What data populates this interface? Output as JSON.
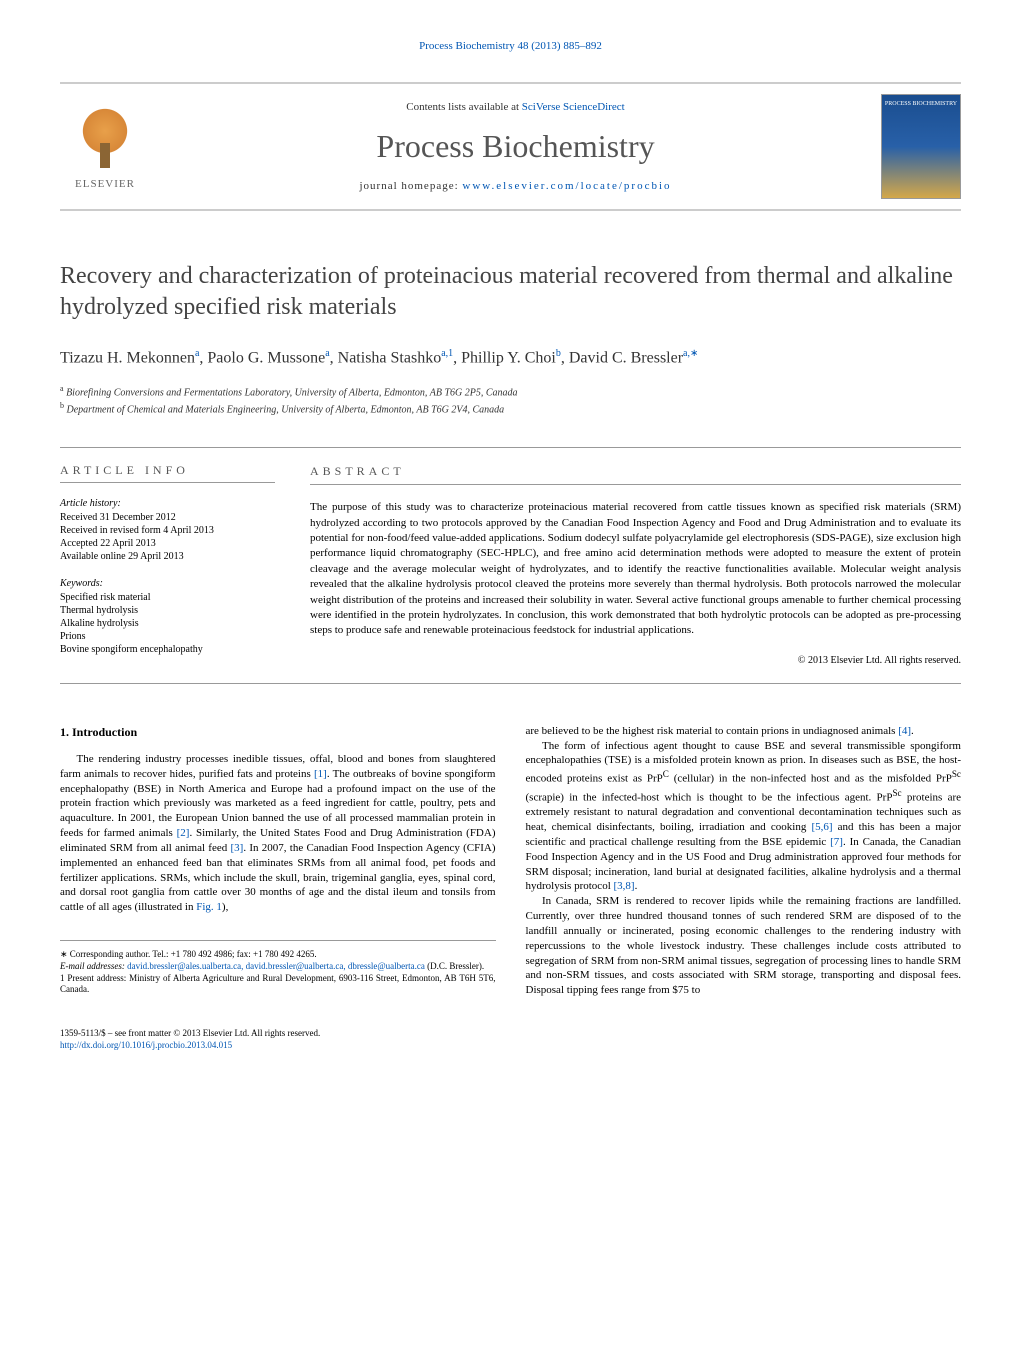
{
  "journal_ref": "Process Biochemistry 48 (2013) 885–892",
  "header": {
    "contents_prefix": "Contents lists available at ",
    "contents_link": "SciVerse ScienceDirect",
    "journal_name": "Process Biochemistry",
    "homepage_prefix": "journal homepage: ",
    "homepage_url": "www.elsevier.com/locate/procbio",
    "publisher": "ELSEVIER"
  },
  "title": "Recovery and characterization of proteinacious material recovered from thermal and alkaline hydrolyzed specified risk materials",
  "authors_html": "Tizazu H. Mekonnen<sup>a</sup>, Paolo G. Mussone<sup>a</sup>, Natisha Stashko<sup>a,1</sup>, Phillip Y. Choi<sup>b</sup>, David C. Bressler<sup>a,∗</sup>",
  "affiliations": {
    "a": "Biorefining Conversions and Fermentations Laboratory, University of Alberta, Edmonton, AB T6G 2P5, Canada",
    "b": "Department of Chemical and Materials Engineering, University of Alberta, Edmonton, AB T6G 2V4, Canada"
  },
  "info": {
    "section_label": "article info",
    "history_label": "Article history:",
    "received": "Received 31 December 2012",
    "revised": "Received in revised form 4 April 2013",
    "accepted": "Accepted 22 April 2013",
    "online": "Available online 29 April 2013",
    "keywords_label": "Keywords:",
    "keywords": [
      "Specified risk material",
      "Thermal hydrolysis",
      "Alkaline hydrolysis",
      "Prions",
      "Bovine spongiform encephalopathy"
    ]
  },
  "abstract": {
    "section_label": "abstract",
    "text": "The purpose of this study was to characterize proteinacious material recovered from cattle tissues known as specified risk materials (SRM) hydrolyzed according to two protocols approved by the Canadian Food Inspection Agency and Food and Drug Administration and to evaluate its potential for non-food/feed value-added applications. Sodium dodecyl sulfate polyacrylamide gel electrophoresis (SDS-PAGE), size exclusion high performance liquid chromatography (SEC-HPLC), and free amino acid determination methods were adopted to measure the extent of protein cleavage and the average molecular weight of hydrolyzates, and to identify the reactive functionalities available. Molecular weight analysis revealed that the alkaline hydrolysis protocol cleaved the proteins more severely than thermal hydrolysis. Both protocols narrowed the molecular weight distribution of the proteins and increased their solubility in water. Several active functional groups amenable to further chemical processing were identified in the protein hydrolyzates. In conclusion, this work demonstrated that both hydrolytic protocols can be adopted as pre-processing steps to produce safe and renewable proteinacious feedstock for industrial applications.",
    "copyright": "© 2013 Elsevier Ltd. All rights reserved."
  },
  "body": {
    "heading": "1. Introduction",
    "col1_p1": "The rendering industry processes inedible tissues, offal, blood and bones from slaughtered farm animals to recover hides, purified fats and proteins [1]. The outbreaks of bovine spongiform encephalopathy (BSE) in North America and Europe had a profound impact on the use of the protein fraction which previously was marketed as a feed ingredient for cattle, poultry, pets and aquaculture. In 2001, the European Union banned the use of all processed mammalian protein in feeds for farmed animals [2]. Similarly, the United States Food and Drug Administration (FDA) eliminated SRM from all animal feed [3]. In 2007, the Canadian Food Inspection Agency (CFIA) implemented an enhanced feed ban that eliminates SRMs from all animal food, pet foods and fertilizer applications. SRMs, which include the skull, brain, trigeminal ganglia, eyes, spinal cord, and dorsal root ganglia from cattle over 30 months of age and the distal ileum and tonsils from cattle of all ages (illustrated in Fig. 1),",
    "col2_p1": "are believed to be the highest risk material to contain prions in undiagnosed animals [4].",
    "col2_p2": "The form of infectious agent thought to cause BSE and several transmissible spongiform encephalopathies (TSE) is a misfolded protein known as prion. In diseases such as BSE, the host-encoded proteins exist as PrPC (cellular) in the non-infected host and as the misfolded PrPSc (scrapie) in the infected-host which is thought to be the infectious agent. PrPSc proteins are extremely resistant to natural degradation and conventional decontamination techniques such as heat, chemical disinfectants, boiling, irradiation and cooking [5,6] and this has been a major scientific and practical challenge resulting from the BSE epidemic [7]. In Canada, the Canadian Food Inspection Agency and in the US Food and Drug administration approved four methods for SRM disposal; incineration, land burial at designated facilities, alkaline hydrolysis and a thermal hydrolysis protocol [3,8].",
    "col2_p3": "In Canada, SRM is rendered to recover lipids while the remaining fractions are landfilled. Currently, over three hundred thousand tonnes of such rendered SRM are disposed of to the landfill annually or incinerated, posing economic challenges to the rendering industry with repercussions to the whole livestock industry. These challenges include costs attributed to segregation of SRM from non-SRM animal tissues, segregation of processing lines to handle SRM and non-SRM tissues, and costs associated with SRM storage, transporting and disposal fees. Disposal tipping fees range from $75 to"
  },
  "footnotes": {
    "corresponding": "∗ Corresponding author. Tel.: +1 780 492 4986; fax: +1 780 492 4265.",
    "email_label": "E-mail addresses: ",
    "emails": "david.bressler@ales.ualberta.ca, david.bressler@ualberta.ca, dbressle@ualberta.ca",
    "email_owner": " (D.C. Bressler).",
    "present": "1 Present address: Ministry of Alberta Agriculture and Rural Development, 6903-116 Street, Edmonton, AB T6H 5T6, Canada."
  },
  "footer": {
    "issn": "1359-5113/$ – see front matter © 2013 Elsevier Ltd. All rights reserved.",
    "doi": "http://dx.doi.org/10.1016/j.procbio.2013.04.015"
  },
  "colors": {
    "link": "#0056b3",
    "text": "#000000",
    "muted": "#555555",
    "border": "#999999"
  }
}
